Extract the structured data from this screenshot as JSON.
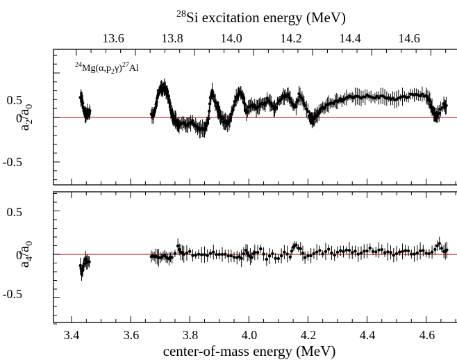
{
  "chart_data": [
    {
      "type": "scatter",
      "panel": "top",
      "ylabel": "a2/a0",
      "ylim": [
        -0.75,
        0.75
      ],
      "xlim": [
        3.4,
        4.7
      ],
      "yticks": [
        -0.5,
        0,
        0.5
      ],
      "ytick_labels": [
        "-0.5",
        "0",
        "0.5"
      ],
      "annotation": "24Mg(α,p2γ)27Al",
      "zero_line_color": "#c0392b",
      "top_axis": {
        "label": "28Si excitation energy (MeV)",
        "ticks": [
          13.6,
          13.8,
          14.0,
          14.2,
          14.4,
          14.6
        ],
        "tick_labels": [
          "13.6",
          "13.8",
          "14.0",
          "14.2",
          "14.4",
          "14.6"
        ],
        "offset_from_cm_energy": 9.984
      },
      "profile": [
        [
          3.43,
          0.22
        ],
        [
          3.436,
          0.2
        ],
        [
          3.442,
          0.06
        ],
        [
          3.448,
          0.02
        ],
        [
          3.452,
          0.05
        ],
        [
          3.458,
          0.04
        ],
        [
          3.462,
          0.06
        ],
        [
          3.67,
          0.03
        ],
        [
          3.678,
          0.02
        ],
        [
          3.684,
          0.1
        ],
        [
          3.69,
          0.22
        ],
        [
          3.696,
          0.3
        ],
        [
          3.702,
          0.33
        ],
        [
          3.708,
          0.32
        ],
        [
          3.714,
          0.34
        ],
        [
          3.72,
          0.3
        ],
        [
          3.726,
          0.25
        ],
        [
          3.732,
          0.16
        ],
        [
          3.738,
          0.06
        ],
        [
          3.744,
          0.0
        ],
        [
          3.75,
          -0.02
        ],
        [
          3.756,
          -0.06
        ],
        [
          3.762,
          -0.1
        ],
        [
          3.768,
          -0.08
        ],
        [
          3.78,
          -0.05
        ],
        [
          3.79,
          -0.1
        ],
        [
          3.8,
          -0.06
        ],
        [
          3.81,
          -0.04
        ],
        [
          3.82,
          -0.1
        ],
        [
          3.83,
          -0.13
        ],
        [
          3.84,
          -0.12
        ],
        [
          3.85,
          -0.13
        ],
        [
          3.858,
          -0.08
        ],
        [
          3.864,
          0.0
        ],
        [
          3.87,
          0.22
        ],
        [
          3.876,
          0.28
        ],
        [
          3.884,
          0.2
        ],
        [
          3.892,
          0.12
        ],
        [
          3.898,
          0.07
        ],
        [
          3.904,
          0.01
        ],
        [
          3.912,
          -0.03
        ],
        [
          3.92,
          -0.05
        ],
        [
          3.928,
          -0.06
        ],
        [
          3.936,
          -0.04
        ],
        [
          3.944,
          0.06
        ],
        [
          3.952,
          0.18
        ],
        [
          3.96,
          0.24
        ],
        [
          3.968,
          0.28
        ],
        [
          3.976,
          0.26
        ],
        [
          3.984,
          0.18
        ],
        [
          3.992,
          0.05
        ],
        [
          4.002,
          0.12
        ],
        [
          4.012,
          0.14
        ],
        [
          4.022,
          0.12
        ],
        [
          4.032,
          0.1
        ],
        [
          4.042,
          0.15
        ],
        [
          4.052,
          0.14
        ],
        [
          4.062,
          0.2
        ],
        [
          4.072,
          0.16
        ],
        [
          4.082,
          0.12
        ],
        [
          4.09,
          0.1
        ],
        [
          4.1,
          0.18
        ],
        [
          4.11,
          0.22
        ],
        [
          4.12,
          0.24
        ],
        [
          4.13,
          0.26
        ],
        [
          4.14,
          0.22
        ],
        [
          4.15,
          0.14
        ],
        [
          4.16,
          0.12
        ],
        [
          4.17,
          0.25
        ],
        [
          4.18,
          0.22
        ],
        [
          4.19,
          0.13
        ],
        [
          4.205,
          0.02
        ],
        [
          4.212,
          -0.02
        ],
        [
          4.218,
          -0.04
        ],
        [
          4.224,
          0.0
        ],
        [
          4.232,
          0.04
        ],
        [
          4.24,
          0.08
        ],
        [
          4.25,
          0.1
        ],
        [
          4.262,
          0.13
        ],
        [
          4.275,
          0.15
        ],
        [
          4.288,
          0.16
        ],
        [
          4.3,
          0.18
        ],
        [
          4.315,
          0.2
        ],
        [
          4.33,
          0.22
        ],
        [
          4.345,
          0.23
        ],
        [
          4.36,
          0.24
        ],
        [
          4.38,
          0.23
        ],
        [
          4.4,
          0.24
        ],
        [
          4.42,
          0.22
        ],
        [
          4.44,
          0.23
        ],
        [
          4.46,
          0.24
        ],
        [
          4.48,
          0.2
        ],
        [
          4.5,
          0.21
        ],
        [
          4.52,
          0.22
        ],
        [
          4.54,
          0.24
        ],
        [
          4.56,
          0.26
        ],
        [
          4.58,
          0.25
        ],
        [
          4.6,
          0.24
        ],
        [
          4.61,
          0.2
        ],
        [
          4.618,
          0.12
        ],
        [
          4.624,
          0.05
        ],
        [
          4.63,
          0.01
        ],
        [
          4.636,
          0.02
        ],
        [
          4.644,
          0.05
        ],
        [
          4.66,
          0.14
        ],
        [
          4.668,
          0.12
        ]
      ]
    },
    {
      "type": "scatter",
      "panel": "bottom",
      "xlabel": "center-of-mass energy (MeV)",
      "ylabel": "a4/a0",
      "ylim": [
        -0.85,
        0.75
      ],
      "xlim": [
        3.4,
        4.7
      ],
      "xticks": [
        3.4,
        3.6,
        3.8,
        4.0,
        4.2,
        4.4,
        4.6
      ],
      "xtick_labels": [
        "3.4",
        "3.6",
        "3.8",
        "4.0",
        "4.2",
        "4.4",
        "4.6"
      ],
      "yticks": [
        -0.5,
        0,
        0.5
      ],
      "ytick_labels": [
        "-0.5",
        "0",
        "0.5"
      ],
      "zero_line_color": "#c0392b",
      "profile": [
        [
          3.43,
          -0.12
        ],
        [
          3.434,
          -0.22
        ],
        [
          3.438,
          -0.17
        ],
        [
          3.442,
          -0.1
        ],
        [
          3.448,
          -0.06
        ],
        [
          3.454,
          -0.1
        ],
        [
          3.46,
          -0.08
        ],
        [
          3.67,
          -0.02
        ],
        [
          3.68,
          -0.04
        ],
        [
          3.69,
          -0.03
        ],
        [
          3.7,
          -0.05
        ],
        [
          3.71,
          0.0
        ],
        [
          3.72,
          -0.04
        ],
        [
          3.73,
          -0.06
        ],
        [
          3.74,
          -0.04
        ],
        [
          3.76,
          0.08
        ],
        [
          3.77,
          0.01
        ],
        [
          3.78,
          0.0
        ],
        [
          3.8,
          0.02
        ],
        [
          3.82,
          -0.01
        ],
        [
          3.84,
          0.01
        ],
        [
          3.86,
          0.0
        ],
        [
          3.88,
          0.03
        ],
        [
          3.9,
          0.0
        ],
        [
          3.92,
          0.0
        ],
        [
          3.94,
          -0.02
        ],
        [
          3.96,
          -0.03
        ],
        [
          3.975,
          -0.05
        ],
        [
          3.99,
          0.06
        ],
        [
          4.0,
          0.0
        ],
        [
          4.01,
          -0.02
        ],
        [
          4.02,
          0.02
        ],
        [
          4.04,
          0.05
        ],
        [
          4.06,
          -0.04
        ],
        [
          4.08,
          0.0
        ],
        [
          4.1,
          -0.06
        ],
        [
          4.12,
          0.02
        ],
        [
          4.14,
          -0.03
        ],
        [
          4.15,
          0.1
        ],
        [
          4.16,
          0.1
        ],
        [
          4.175,
          0.08
        ],
        [
          4.19,
          -0.05
        ],
        [
          4.21,
          0.0
        ],
        [
          4.23,
          0.04
        ],
        [
          4.25,
          0.02
        ],
        [
          4.27,
          0.06
        ],
        [
          4.29,
          -0.02
        ],
        [
          4.31,
          0.04
        ],
        [
          4.33,
          0.05
        ],
        [
          4.35,
          0.03
        ],
        [
          4.37,
          0.01
        ],
        [
          4.39,
          0.04
        ],
        [
          4.41,
          0.06
        ],
        [
          4.43,
          0.03
        ],
        [
          4.45,
          0.04
        ],
        [
          4.47,
          0.02
        ],
        [
          4.49,
          0.0
        ],
        [
          4.51,
          0.02
        ],
        [
          4.53,
          0.04
        ],
        [
          4.55,
          0.01
        ],
        [
          4.57,
          0.03
        ],
        [
          4.59,
          0.04
        ],
        [
          4.61,
          0.02
        ],
        [
          4.63,
          0.06
        ],
        [
          4.645,
          0.12
        ],
        [
          4.66,
          0.04
        ],
        [
          4.67,
          0.06
        ]
      ]
    }
  ]
}
